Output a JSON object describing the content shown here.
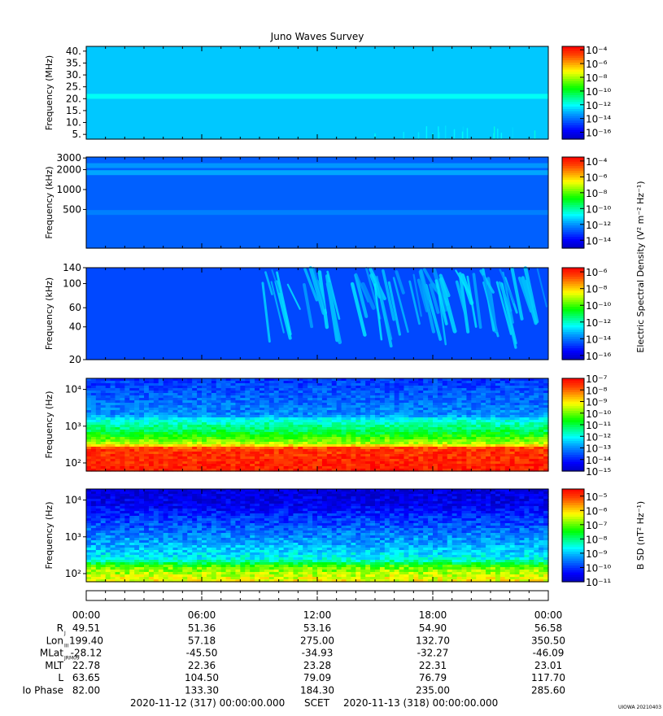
{
  "title": "Juno Waves Survey",
  "footer_credit": "UIOWA 20210403",
  "colors": {
    "scale": [
      "#0000c0",
      "#0000ff",
      "#0050ff",
      "#00a0ff",
      "#00ffff",
      "#00ff80",
      "#00ff00",
      "#80ff00",
      "#ffff00",
      "#ffa000",
      "#ff4000",
      "#ff0000"
    ]
  },
  "chart_data": [
    {
      "type": "heatmap",
      "panel": "HF (MHz)",
      "ylabel": "Frequency (MHz)",
      "y_ticks": [
        "40.",
        "35.",
        "30.",
        "25.",
        "20.",
        "15.",
        "10.",
        "5."
      ],
      "y_tick_values": [
        40,
        35,
        30,
        25,
        20,
        15,
        10,
        5
      ],
      "ylim": [
        3,
        42
      ],
      "yscale": "linear",
      "colorbar_ticks": [
        -4,
        -6,
        -8,
        -10,
        -12,
        -14,
        -16
      ],
      "colorbar_range": [
        -17,
        -3.5
      ],
      "background_level": -12.8,
      "bands": [
        {
          "y": 21,
          "level": -12.0
        }
      ],
      "features": [
        {
          "x0": 15.0,
          "x1": 24.0,
          "y0": 3.5,
          "y1": 10.0,
          "level": -12.2,
          "note": "weak emission"
        }
      ]
    },
    {
      "type": "heatmap",
      "panel": "HF (kHz)",
      "ylabel": "Frequency (kHz)",
      "y_ticks": [
        "3000",
        "2000",
        "1000",
        "500"
      ],
      "y_tick_values": [
        3000,
        2000,
        1000,
        500
      ],
      "ylim": [
        130,
        3100
      ],
      "yscale": "log",
      "colorbar_ticks": [
        -4,
        -6,
        -8,
        -10,
        -12,
        -14
      ],
      "colorbar_range": [
        -15,
        -3.5
      ],
      "background_level": -12.7,
      "bands": [
        {
          "y": 1800,
          "level": -11.8
        },
        {
          "y": 2300,
          "level": -12.0
        },
        {
          "y": 450,
          "level": -12.3
        }
      ],
      "colorbar_label": "Electric Spectral Density (V² m⁻² Hz⁻¹)"
    },
    {
      "type": "heatmap",
      "panel": "LF (kHz)",
      "ylabel": "Frequency (kHz)",
      "y_ticks": [
        "140",
        "100",
        "60",
        "40",
        "20"
      ],
      "y_tick_values": [
        140,
        100,
        60,
        40,
        20
      ],
      "ylim": [
        20,
        140
      ],
      "yscale": "log",
      "colorbar_ticks": [
        -6,
        -8,
        -10,
        -12,
        -14,
        -16
      ],
      "colorbar_range": [
        -16.5,
        -5.5
      ],
      "background_level": -14.6,
      "features": [
        {
          "x0": 9.5,
          "x1": 24.0,
          "y0": 20,
          "y1": 140,
          "level": -13.2,
          "note": "drifting emission streaks"
        }
      ]
    },
    {
      "type": "heatmap",
      "panel": "E-field (Hz)",
      "ylabel": "Frequency (Hz)",
      "y_ticks": [
        "10⁴",
        "10³",
        "10²"
      ],
      "y_tick_values": [
        10000,
        1000,
        100
      ],
      "ylim": [
        60,
        20000
      ],
      "yscale": "log",
      "colorbar_ticks": [
        -7,
        -8,
        -9,
        -10,
        -11,
        -12,
        -13,
        -14,
        -15
      ],
      "colorbar_range": [
        -15,
        -7
      ],
      "profile": [
        {
          "f": 60,
          "level": -7.3
        },
        {
          "f": 250,
          "level": -7.6
        },
        {
          "f": 320,
          "level": -9.5
        },
        {
          "f": 700,
          "level": -11.0
        },
        {
          "f": 1500,
          "level": -12.0
        },
        {
          "f": 2000,
          "level": -13.0
        },
        {
          "f": 20000,
          "level": -13.8
        }
      ]
    },
    {
      "type": "heatmap",
      "panel": "B-field (Hz)",
      "ylabel": "Frequency (Hz)",
      "y_ticks": [
        "10⁴",
        "10³",
        "10²"
      ],
      "y_tick_values": [
        10000,
        1000,
        100
      ],
      "ylim": [
        60,
        20000
      ],
      "yscale": "log",
      "colorbar_ticks": [
        -5,
        -6,
        -7,
        -8,
        -9,
        -10,
        -11
      ],
      "colorbar_range": [
        -11,
        -4.5
      ],
      "colorbar_label": "B SD (nT² Hz⁻¹)",
      "profile": [
        {
          "f": 60,
          "level": -6.2
        },
        {
          "f": 150,
          "level": -7.0
        },
        {
          "f": 250,
          "level": -8.6
        },
        {
          "f": 800,
          "level": -9.3
        },
        {
          "f": 3000,
          "level": -10.0
        },
        {
          "f": 8000,
          "level": -10.6
        },
        {
          "f": 20000,
          "level": -10.8
        }
      ]
    }
  ],
  "time_axis": {
    "labels": [
      "00:00",
      "06:00",
      "12:00",
      "18:00",
      "00:00"
    ],
    "hours": [
      0,
      6,
      12,
      18,
      24
    ]
  },
  "ephemeris": {
    "rows": [
      {
        "label": "R",
        "sub": "J",
        "values": [
          "49.51",
          "51.36",
          "53.16",
          "54.90",
          "56.58"
        ]
      },
      {
        "label": "Lon",
        "sub": "III",
        "values": [
          "199.40",
          "57.18",
          "275.00",
          "132.70",
          "350.50"
        ]
      },
      {
        "label": "MLat",
        "sub": "JRM09",
        "values": [
          "-28.12",
          "-45.50",
          "-34.93",
          "-32.27",
          "-46.09"
        ]
      },
      {
        "label": "MLT",
        "sub": "",
        "values": [
          "22.78",
          "22.36",
          "23.28",
          "22.31",
          "23.01"
        ]
      },
      {
        "label": "L",
        "sub": "",
        "values": [
          "63.65",
          "104.50",
          "79.09",
          "76.79",
          "117.70"
        ]
      },
      {
        "label": "Io Phase",
        "sub": "",
        "values": [
          "82.00",
          "133.30",
          "184.30",
          "235.00",
          "285.60"
        ]
      }
    ]
  },
  "time_range": {
    "start": "2020-11-12 (317) 00:00:00.000",
    "label": "SCET",
    "end": "2020-11-13 (318) 00:00:00.000"
  }
}
